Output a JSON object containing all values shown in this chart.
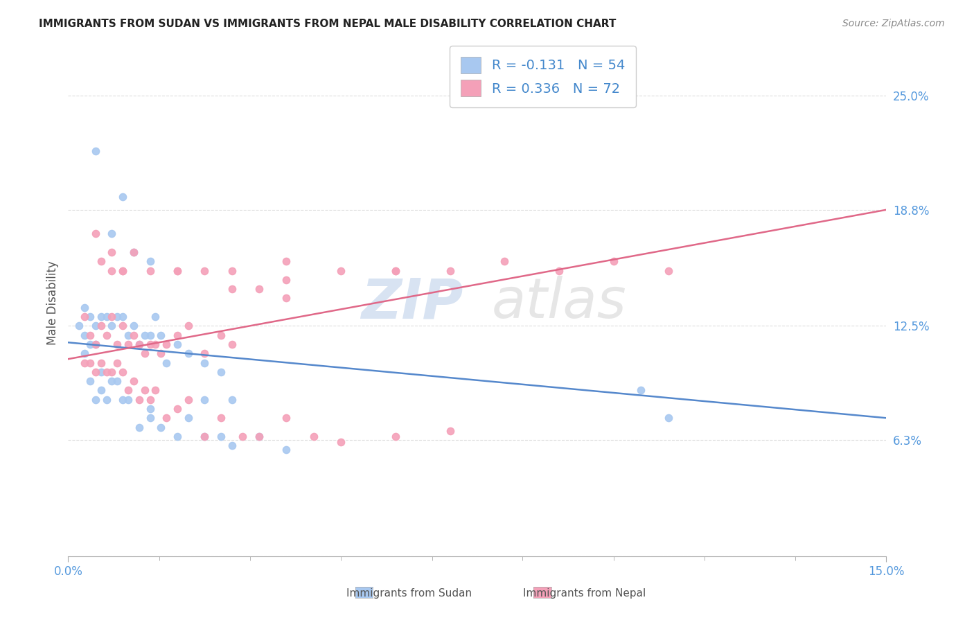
{
  "title": "IMMIGRANTS FROM SUDAN VS IMMIGRANTS FROM NEPAL MALE DISABILITY CORRELATION CHART",
  "source": "Source: ZipAtlas.com",
  "ylabel": "Male Disability",
  "yticks": [
    0.0,
    0.063,
    0.125,
    0.188,
    0.25
  ],
  "ytick_labels": [
    "",
    "6.3%",
    "12.5%",
    "18.8%",
    "25.0%"
  ],
  "xlim": [
    0.0,
    0.15
  ],
  "ylim": [
    0.0,
    0.275
  ],
  "sudan_color": "#a8c8f0",
  "nepal_color": "#f4a0b8",
  "sudan_line_color": "#5588cc",
  "nepal_line_color": "#e06888",
  "sudan_R": -0.131,
  "sudan_N": 54,
  "nepal_R": 0.336,
  "nepal_N": 72,
  "background_color": "#ffffff",
  "grid_color": "#dddddd",
  "sudan_x": [
    0.005,
    0.008,
    0.01,
    0.012,
    0.015,
    0.003,
    0.004,
    0.005,
    0.006,
    0.007,
    0.008,
    0.009,
    0.01,
    0.011,
    0.012,
    0.013,
    0.014,
    0.015,
    0.016,
    0.017,
    0.018,
    0.02,
    0.022,
    0.025,
    0.028,
    0.03,
    0.003,
    0.004,
    0.005,
    0.006,
    0.007,
    0.008,
    0.009,
    0.01,
    0.011,
    0.013,
    0.015,
    0.017,
    0.02,
    0.022,
    0.025,
    0.028,
    0.03,
    0.035,
    0.04,
    0.002,
    0.003,
    0.004,
    0.005,
    0.006,
    0.105,
    0.11,
    0.015,
    0.025
  ],
  "sudan_y": [
    0.22,
    0.175,
    0.195,
    0.165,
    0.16,
    0.135,
    0.13,
    0.125,
    0.13,
    0.13,
    0.125,
    0.13,
    0.13,
    0.12,
    0.125,
    0.115,
    0.12,
    0.12,
    0.13,
    0.12,
    0.105,
    0.115,
    0.11,
    0.105,
    0.1,
    0.085,
    0.11,
    0.095,
    0.085,
    0.09,
    0.085,
    0.095,
    0.095,
    0.085,
    0.085,
    0.07,
    0.075,
    0.07,
    0.065,
    0.075,
    0.065,
    0.065,
    0.06,
    0.065,
    0.058,
    0.125,
    0.12,
    0.115,
    0.115,
    0.1,
    0.09,
    0.075,
    0.08,
    0.085
  ],
  "nepal_x": [
    0.003,
    0.004,
    0.005,
    0.006,
    0.007,
    0.008,
    0.009,
    0.01,
    0.011,
    0.012,
    0.013,
    0.014,
    0.015,
    0.016,
    0.017,
    0.018,
    0.02,
    0.022,
    0.025,
    0.028,
    0.03,
    0.003,
    0.004,
    0.005,
    0.006,
    0.007,
    0.008,
    0.009,
    0.01,
    0.011,
    0.012,
    0.013,
    0.014,
    0.015,
    0.016,
    0.018,
    0.02,
    0.022,
    0.025,
    0.028,
    0.032,
    0.035,
    0.04,
    0.045,
    0.05,
    0.06,
    0.07,
    0.03,
    0.035,
    0.04,
    0.005,
    0.008,
    0.01,
    0.012,
    0.015,
    0.02,
    0.025,
    0.03,
    0.04,
    0.05,
    0.06,
    0.07,
    0.08,
    0.09,
    0.1,
    0.11,
    0.06,
    0.04,
    0.02,
    0.01,
    0.008,
    0.006
  ],
  "nepal_y": [
    0.13,
    0.12,
    0.115,
    0.125,
    0.12,
    0.13,
    0.115,
    0.125,
    0.115,
    0.12,
    0.115,
    0.11,
    0.115,
    0.115,
    0.11,
    0.115,
    0.12,
    0.125,
    0.11,
    0.12,
    0.115,
    0.105,
    0.105,
    0.1,
    0.105,
    0.1,
    0.1,
    0.105,
    0.1,
    0.09,
    0.095,
    0.085,
    0.09,
    0.085,
    0.09,
    0.075,
    0.08,
    0.085,
    0.065,
    0.075,
    0.065,
    0.065,
    0.075,
    0.065,
    0.062,
    0.065,
    0.068,
    0.145,
    0.145,
    0.15,
    0.175,
    0.165,
    0.155,
    0.165,
    0.155,
    0.155,
    0.155,
    0.155,
    0.16,
    0.155,
    0.155,
    0.155,
    0.16,
    0.155,
    0.16,
    0.155,
    0.155,
    0.14,
    0.155,
    0.155,
    0.155,
    0.16
  ]
}
